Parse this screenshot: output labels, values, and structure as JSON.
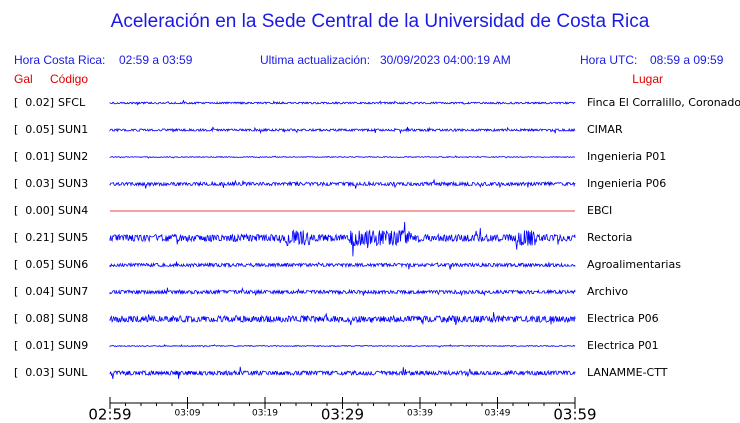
{
  "title": "Aceleración en la Sede Central de la Universidad de Costa Rica",
  "header": {
    "local_label": "Hora Costa Rica:",
    "local_range": "02:59 a 03:59",
    "update_label": "Ultima actualización:",
    "update_time": "30/09/2023 04:00:19 AM",
    "utc_label": "Hora UTC:",
    "utc_range": "08:59 a 09:59"
  },
  "columns": {
    "gal": "Gal",
    "code": "Código",
    "place": "Lugar"
  },
  "stations": [
    {
      "gal": "[  0.02]",
      "code": "SFCL",
      "place": "Finca El Corralillo, Coronado",
      "color": "#0000ff"
    },
    {
      "gal": "[  0.05]",
      "code": "SUN1",
      "place": "CIMAR",
      "color": "#0000ff"
    },
    {
      "gal": "[  0.01]",
      "code": "SUN2",
      "place": "Ingenieria P01",
      "color": "#0000ff"
    },
    {
      "gal": "[  0.03]",
      "code": "SUN3",
      "place": "Ingenieria P06",
      "color": "#0000ff"
    },
    {
      "gal": "[  0.00]",
      "code": "SUN4",
      "place": "EBCI",
      "color": "#e00000"
    },
    {
      "gal": "[  0.21]",
      "code": "SUN5",
      "place": "Rectoria",
      "color": "#0000ff"
    },
    {
      "gal": "[  0.05]",
      "code": "SUN6",
      "place": "Agroalimentarias",
      "color": "#0000ff"
    },
    {
      "gal": "[  0.04]",
      "code": "SUN7",
      "place": "Archivo",
      "color": "#0000ff"
    },
    {
      "gal": "[  0.08]",
      "code": "SUN8",
      "place": "Electrica P06",
      "color": "#0000ff"
    },
    {
      "gal": "[  0.01]",
      "code": "SUN9",
      "place": "Electrica P01",
      "color": "#0000ff"
    },
    {
      "gal": "[  0.03]",
      "code": "SUNL",
      "place": "LANAMME-CTT",
      "color": "#0000ff"
    }
  ],
  "time_ticks": [
    "02:59",
    "03:09",
    "03:19",
    "03:29",
    "03:39",
    "03:49",
    "03:59"
  ]
}
